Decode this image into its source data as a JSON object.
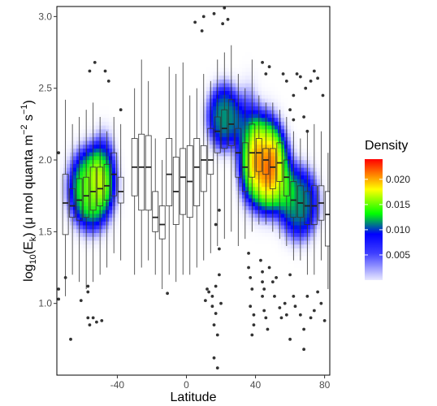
{
  "chart_data": {
    "type": "heatmap+boxplot",
    "xlabel": "Latitude",
    "ylabel": {
      "prefix": "log",
      "base": "10",
      "open": "(E",
      "sub": "k",
      "middle": ") (μ mol quanta  m",
      "exp1": "−2",
      "space": " s",
      "exp2": "−1",
      "close": ")"
    },
    "xlim": [
      -75,
      83
    ],
    "ylim": [
      0.5,
      3.07
    ],
    "x_ticks": [
      {
        "v": -40,
        "label": "-40"
      },
      {
        "v": 0,
        "label": "0"
      },
      {
        "v": 40,
        "label": "40"
      },
      {
        "v": 80,
        "label": "80"
      }
    ],
    "y_ticks": [
      {
        "v": 1.0,
        "label": "1.0"
      },
      {
        "v": 1.5,
        "label": "1.5"
      },
      {
        "v": 2.0,
        "label": "2.0"
      },
      {
        "v": 2.5,
        "label": "2.5"
      },
      {
        "v": 3.0,
        "label": "3.0"
      }
    ],
    "legend": {
      "title": "Density",
      "range": [
        0,
        0.024
      ],
      "ticks": [
        {
          "v": 0.005,
          "label": "0.005"
        },
        {
          "v": 0.01,
          "label": "0.010"
        },
        {
          "v": 0.015,
          "label": "0.015"
        },
        {
          "v": 0.02,
          "label": "0.020"
        }
      ],
      "placement": "right"
    },
    "colors": [
      "#ffffff",
      "#c8c8ff",
      "#0000ff",
      "#00ff00",
      "#ffff00",
      "#ff0000"
    ],
    "density_blobs": [
      {
        "x": -55,
        "y": 1.8,
        "sx": 10,
        "sy": 0.22,
        "w": 0.012
      },
      {
        "x": -48,
        "y": 1.95,
        "sx": 6,
        "sy": 0.2,
        "w": 0.004
      },
      {
        "x": 22,
        "y": 2.3,
        "sx": 8,
        "sy": 0.18,
        "w": 0.008
      },
      {
        "x": 45,
        "y": 1.98,
        "sx": 9,
        "sy": 0.25,
        "w": 0.016
      },
      {
        "x": 52,
        "y": 1.9,
        "sx": 8,
        "sy": 0.22,
        "w": 0.006
      },
      {
        "x": 65,
        "y": 1.7,
        "sx": 9,
        "sy": 0.2,
        "w": 0.008
      },
      {
        "x": 36,
        "y": 2.1,
        "sx": 6,
        "sy": 0.3,
        "w": 0.005
      }
    ],
    "boxes": [
      {
        "x": -70,
        "lo": 1.05,
        "q1": 1.48,
        "med": 1.7,
        "q3": 1.9,
        "hi": 2.42
      },
      {
        "x": -66,
        "lo": 1.2,
        "q1": 1.6,
        "med": 1.68,
        "q3": 1.8,
        "hi": 2.25
      },
      {
        "x": -62,
        "lo": 1.15,
        "q1": 1.58,
        "med": 1.72,
        "q3": 1.87,
        "hi": 2.3
      },
      {
        "x": -58,
        "lo": 1.1,
        "q1": 1.6,
        "med": 1.75,
        "q3": 1.88,
        "hi": 2.35
      },
      {
        "x": -54,
        "lo": 1.15,
        "q1": 1.65,
        "med": 1.78,
        "q3": 1.95,
        "hi": 2.4
      },
      {
        "x": -50,
        "lo": 1.2,
        "q1": 1.68,
        "med": 1.8,
        "q3": 1.95,
        "hi": 2.3
      },
      {
        "x": -46,
        "lo": 1.25,
        "q1": 1.72,
        "med": 1.82,
        "q3": 1.97,
        "hi": 2.2
      },
      {
        "x": -42,
        "lo": 1.35,
        "q1": 1.75,
        "med": 1.9,
        "q3": 2.05,
        "hi": 2.3
      },
      {
        "x": -38,
        "lo": 1.3,
        "q1": 1.7,
        "med": 1.78,
        "q3": 1.88,
        "hi": 2.25
      },
      {
        "x": -30,
        "lo": 1.2,
        "q1": 1.75,
        "med": 1.95,
        "q3": 2.15,
        "hi": 2.5
      },
      {
        "x": -26,
        "lo": 1.25,
        "q1": 1.65,
        "med": 1.95,
        "q3": 2.18,
        "hi": 2.7
      },
      {
        "x": -22,
        "lo": 1.3,
        "q1": 1.65,
        "med": 1.95,
        "q3": 2.17,
        "hi": 2.55
      },
      {
        "x": -18,
        "lo": 1.2,
        "q1": 1.5,
        "med": 1.6,
        "q3": 1.78,
        "hi": 2.15
      },
      {
        "x": -14,
        "lo": 1.1,
        "q1": 1.45,
        "med": 1.55,
        "q3": 1.68,
        "hi": 2.0
      },
      {
        "x": -10,
        "lo": 1.2,
        "q1": 1.68,
        "med": 1.9,
        "q3": 2.15,
        "hi": 2.65
      },
      {
        "x": -6,
        "lo": 1.15,
        "q1": 1.55,
        "med": 1.78,
        "q3": 2.02,
        "hi": 2.6
      },
      {
        "x": -2,
        "lo": 1.2,
        "q1": 1.62,
        "med": 1.88,
        "q3": 2.08,
        "hi": 2.68
      },
      {
        "x": 2,
        "lo": 1.2,
        "q1": 1.6,
        "med": 1.85,
        "q3": 2.1,
        "hi": 2.45
      },
      {
        "x": 6,
        "lo": 1.25,
        "q1": 1.68,
        "med": 1.95,
        "q3": 2.15,
        "hi": 2.5
      },
      {
        "x": 10,
        "lo": 1.3,
        "q1": 1.78,
        "med": 2.0,
        "q3": 2.1,
        "hi": 2.6
      },
      {
        "x": 14,
        "lo": 1.35,
        "q1": 1.9,
        "med": 2.0,
        "q3": 2.22,
        "hi": 2.55
      },
      {
        "x": 18,
        "lo": 1.4,
        "q1": 2.05,
        "med": 2.2,
        "q3": 2.3,
        "hi": 2.7
      },
      {
        "x": 22,
        "lo": 1.45,
        "q1": 2.08,
        "med": 2.22,
        "q3": 2.35,
        "hi": 2.75
      },
      {
        "x": 26,
        "lo": 1.5,
        "q1": 2.1,
        "med": 2.25,
        "q3": 2.42,
        "hi": 2.8
      },
      {
        "x": 30,
        "lo": 1.4,
        "q1": 1.88,
        "med": 2.05,
        "q3": 2.22,
        "hi": 2.6
      },
      {
        "x": 34,
        "lo": 1.45,
        "q1": 1.78,
        "med": 1.95,
        "q3": 2.12,
        "hi": 2.5
      },
      {
        "x": 38,
        "lo": 1.5,
        "q1": 1.88,
        "med": 2.05,
        "q3": 2.25,
        "hi": 2.7
      },
      {
        "x": 42,
        "lo": 1.55,
        "q1": 1.92,
        "med": 2.05,
        "q3": 2.15,
        "hi": 2.45
      },
      {
        "x": 46,
        "lo": 1.55,
        "q1": 1.9,
        "med": 2.0,
        "q3": 2.08,
        "hi": 2.4
      },
      {
        "x": 50,
        "lo": 1.5,
        "q1": 1.8,
        "med": 1.95,
        "q3": 2.08,
        "hi": 2.4
      },
      {
        "x": 54,
        "lo": 1.45,
        "q1": 1.85,
        "med": 1.98,
        "q3": 2.12,
        "hi": 2.35
      },
      {
        "x": 58,
        "lo": 1.4,
        "q1": 1.75,
        "med": 1.88,
        "q3": 2.0,
        "hi": 2.3
      },
      {
        "x": 62,
        "lo": 1.3,
        "q1": 1.6,
        "med": 1.72,
        "q3": 1.85,
        "hi": 2.2
      },
      {
        "x": 66,
        "lo": 1.3,
        "q1": 1.6,
        "med": 1.7,
        "q3": 1.82,
        "hi": 2.15
      },
      {
        "x": 70,
        "lo": 1.2,
        "q1": 1.55,
        "med": 1.68,
        "q3": 1.78,
        "hi": 2.2
      },
      {
        "x": 74,
        "lo": 1.2,
        "q1": 1.55,
        "med": 1.68,
        "q3": 1.82,
        "hi": 2.25
      },
      {
        "x": 78,
        "lo": 1.3,
        "q1": 1.58,
        "med": 1.7,
        "q3": 1.82,
        "hi": 2.2
      },
      {
        "x": 82,
        "lo": 1.1,
        "q1": 1.4,
        "med": 1.62,
        "q3": 1.78,
        "hi": 2.05
      }
    ],
    "outliers": [
      [
        -74,
        2.05
      ],
      [
        -74,
        1.1
      ],
      [
        -74,
        1.03
      ],
      [
        -70,
        1.18
      ],
      [
        -67,
        0.75
      ],
      [
        -61,
        1.02
      ],
      [
        -57,
        1.12
      ],
      [
        -57,
        1.08
      ],
      [
        -57,
        0.9
      ],
      [
        -56,
        0.85
      ],
      [
        -54,
        0.9
      ],
      [
        -52,
        0.87
      ],
      [
        -49,
        0.88
      ],
      [
        -56,
        2.62
      ],
      [
        -53,
        2.68
      ],
      [
        -47,
        2.62
      ],
      [
        -45,
        2.55
      ],
      [
        -38,
        2.35
      ],
      [
        -11,
        1.07
      ],
      [
        5,
        2.96
      ],
      [
        9,
        2.9
      ],
      [
        10,
        3.0
      ],
      [
        16,
        3.02
      ],
      [
        12,
        1.1
      ],
      [
        11,
        1.02
      ],
      [
        13,
        1.08
      ],
      [
        15,
        0.98
      ],
      [
        15,
        1.05
      ],
      [
        17,
        0.93
      ],
      [
        17,
        1.12
      ],
      [
        19,
        1.38
      ],
      [
        19,
        1.2
      ],
      [
        16,
        0.85
      ],
      [
        18,
        0.78
      ],
      [
        16,
        0.62
      ],
      [
        18,
        0.55
      ],
      [
        20,
        1.0
      ],
      [
        17,
        1.55
      ],
      [
        19,
        1.65
      ],
      [
        22,
        3.06
      ],
      [
        24,
        2.98
      ],
      [
        21,
        2.95
      ],
      [
        36,
        1.35
      ],
      [
        36,
        1.25
      ],
      [
        37,
        1.18
      ],
      [
        38,
        1.1
      ],
      [
        37,
        0.98
      ],
      [
        39,
        0.92
      ],
      [
        39,
        0.85
      ],
      [
        38,
        0.78
      ],
      [
        43,
        1.3
      ],
      [
        44,
        1.22
      ],
      [
        45,
        1.1
      ],
      [
        44,
        1.05
      ],
      [
        45,
        0.95
      ],
      [
        46,
        0.9
      ],
      [
        47,
        0.82
      ],
      [
        44,
        1.15
      ],
      [
        48,
        1.25
      ],
      [
        50,
        1.15
      ],
      [
        52,
        1.18
      ],
      [
        51,
        1.05
      ],
      [
        54,
        0.97
      ],
      [
        55,
        0.9
      ],
      [
        57,
        1.0
      ],
      [
        58,
        0.92
      ],
      [
        60,
        1.2
      ],
      [
        62,
        1.05
      ],
      [
        63,
        0.98
      ],
      [
        66,
        0.92
      ],
      [
        68,
        0.82
      ],
      [
        70,
        1.05
      ],
      [
        72,
        0.9
      ],
      [
        74,
        0.95
      ],
      [
        76,
        1.08
      ],
      [
        78,
        1.0
      ],
      [
        80,
        0.88
      ],
      [
        68,
        0.68
      ],
      [
        60,
        0.75
      ],
      [
        44,
        2.68
      ],
      [
        46,
        2.6
      ],
      [
        48,
        2.65
      ],
      [
        56,
        2.6
      ],
      [
        58,
        2.55
      ],
      [
        62,
        2.45
      ],
      [
        64,
        2.6
      ],
      [
        66,
        2.58
      ],
      [
        69,
        2.5
      ],
      [
        72,
        2.55
      ],
      [
        74,
        2.62
      ],
      [
        76,
        2.57
      ],
      [
        79,
        2.45
      ],
      [
        60,
        2.35
      ],
      [
        62,
        2.28
      ],
      [
        68,
        2.3
      ],
      [
        70,
        2.2
      ]
    ]
  }
}
